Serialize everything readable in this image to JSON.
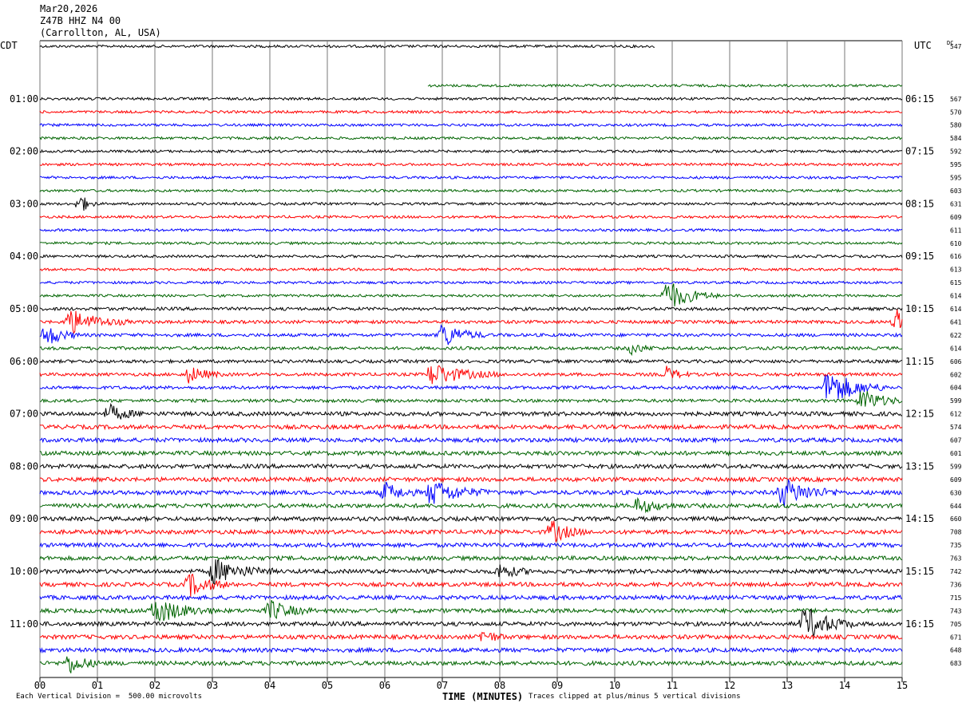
{
  "header": {
    "date": "Mar20,2026",
    "station": "Z47B HHZ N4 00",
    "location": "(Carrollton, AL, USA)"
  },
  "left_tz": "CDT",
  "right_tz": "UTC",
  "dc_label": "DC",
  "footer": {
    "scale_note": "Each Vertical Division =  500.00 microvolts",
    "clip_note": "Traces clipped at plus/minus 5 vertical divisions",
    "xlabel": "TIME (MINUTES)"
  },
  "chart_data": {
    "type": "line",
    "title": "",
    "xlabel": "TIME (MINUTES)",
    "xlim": [
      0,
      15
    ],
    "x_ticks": [
      "00",
      "01",
      "02",
      "03",
      "04",
      "05",
      "06",
      "07",
      "08",
      "09",
      "10",
      "11",
      "12",
      "13",
      "14",
      "15"
    ],
    "left_time_labels": [
      {
        "row": 4,
        "label": "01:00"
      },
      {
        "row": 8,
        "label": "02:00"
      },
      {
        "row": 12,
        "label": "03:00"
      },
      {
        "row": 16,
        "label": "04:00"
      },
      {
        "row": 20,
        "label": "05:00"
      },
      {
        "row": 24,
        "label": "06:00"
      },
      {
        "row": 28,
        "label": "07:00"
      },
      {
        "row": 32,
        "label": "08:00"
      },
      {
        "row": 36,
        "label": "09:00"
      },
      {
        "row": 40,
        "label": "10:00"
      },
      {
        "row": 44,
        "label": "11:00"
      }
    ],
    "right_time_labels": [
      {
        "row": 4,
        "label": "06:15"
      },
      {
        "row": 8,
        "label": "07:15"
      },
      {
        "row": 12,
        "label": "08:15"
      },
      {
        "row": 16,
        "label": "09:15"
      },
      {
        "row": 20,
        "label": "10:15"
      },
      {
        "row": 24,
        "label": "11:15"
      },
      {
        "row": 28,
        "label": "12:15"
      },
      {
        "row": 32,
        "label": "13:15"
      },
      {
        "row": 36,
        "label": "14:15"
      },
      {
        "row": 40,
        "label": "15:15"
      },
      {
        "row": 44,
        "label": "16:15"
      }
    ],
    "color_cycle": [
      "#000000",
      "#ff0000",
      "#0000ff",
      "#006400"
    ],
    "traces": [
      {
        "row": 0,
        "dc": "547",
        "start": 0,
        "end": 10.7
      },
      {
        "row": 1,
        "dc": "",
        "start": 0,
        "end": 0
      },
      {
        "row": 2,
        "dc": "",
        "start": 0,
        "end": 0
      },
      {
        "row": 3,
        "dc": "",
        "start": 6.75,
        "end": 15
      },
      {
        "row": 4,
        "dc": "567"
      },
      {
        "row": 5,
        "dc": "570"
      },
      {
        "row": 6,
        "dc": "580"
      },
      {
        "row": 7,
        "dc": "584"
      },
      {
        "row": 8,
        "dc": "592"
      },
      {
        "row": 9,
        "dc": "595"
      },
      {
        "row": 10,
        "dc": "595"
      },
      {
        "row": 11,
        "dc": "603"
      },
      {
        "row": 12,
        "dc": "631"
      },
      {
        "row": 13,
        "dc": "609"
      },
      {
        "row": 14,
        "dc": "611"
      },
      {
        "row": 15,
        "dc": "610"
      },
      {
        "row": 16,
        "dc": "616"
      },
      {
        "row": 17,
        "dc": "613"
      },
      {
        "row": 18,
        "dc": "615"
      },
      {
        "row": 19,
        "dc": "614"
      },
      {
        "row": 20,
        "dc": "614"
      },
      {
        "row": 21,
        "dc": "641"
      },
      {
        "row": 22,
        "dc": "622"
      },
      {
        "row": 23,
        "dc": "614"
      },
      {
        "row": 24,
        "dc": "606"
      },
      {
        "row": 25,
        "dc": "602"
      },
      {
        "row": 26,
        "dc": "604"
      },
      {
        "row": 27,
        "dc": "599"
      },
      {
        "row": 28,
        "dc": "612"
      },
      {
        "row": 29,
        "dc": "574"
      },
      {
        "row": 30,
        "dc": "607"
      },
      {
        "row": 31,
        "dc": "601"
      },
      {
        "row": 32,
        "dc": "599"
      },
      {
        "row": 33,
        "dc": "609"
      },
      {
        "row": 34,
        "dc": "630"
      },
      {
        "row": 35,
        "dc": "644"
      },
      {
        "row": 36,
        "dc": "660"
      },
      {
        "row": 37,
        "dc": "708"
      },
      {
        "row": 38,
        "dc": "735"
      },
      {
        "row": 39,
        "dc": "763"
      },
      {
        "row": 40,
        "dc": "742"
      },
      {
        "row": 41,
        "dc": "736"
      },
      {
        "row": 42,
        "dc": "715"
      },
      {
        "row": 43,
        "dc": "743"
      },
      {
        "row": 44,
        "dc": "705"
      },
      {
        "row": 45,
        "dc": "671"
      },
      {
        "row": 46,
        "dc": "648"
      },
      {
        "row": 47,
        "dc": "683"
      }
    ],
    "events": [
      {
        "row": 12,
        "t": 0.7,
        "amp": 1.4,
        "w": 0.2
      },
      {
        "row": 19,
        "t": 10.9,
        "amp": 2.2,
        "w": 0.6
      },
      {
        "row": 21,
        "t": 0.5,
        "amp": 1.8,
        "w": 0.7
      },
      {
        "row": 22,
        "t": 0.1,
        "amp": 1.6,
        "w": 0.4
      },
      {
        "row": 21,
        "t": 14.9,
        "amp": 1.8,
        "w": 0.3
      },
      {
        "row": 22,
        "t": 7.0,
        "amp": 1.8,
        "w": 0.5
      },
      {
        "row": 23,
        "t": 10.3,
        "amp": 0.8,
        "w": 0.3
      },
      {
        "row": 25,
        "t": 2.6,
        "amp": 1.2,
        "w": 0.4
      },
      {
        "row": 25,
        "t": 6.8,
        "amp": 1.6,
        "w": 0.8
      },
      {
        "row": 25,
        "t": 10.9,
        "amp": 1.0,
        "w": 0.3
      },
      {
        "row": 26,
        "t": 13.7,
        "amp": 2.6,
        "w": 0.7
      },
      {
        "row": 27,
        "t": 14.3,
        "amp": 1.6,
        "w": 0.5
      },
      {
        "row": 28,
        "t": 1.2,
        "amp": 1.2,
        "w": 0.4
      },
      {
        "row": 34,
        "t": 6.0,
        "amp": 1.4,
        "w": 0.4
      },
      {
        "row": 34,
        "t": 6.8,
        "amp": 1.8,
        "w": 0.7
      },
      {
        "row": 34,
        "t": 12.9,
        "amp": 2.0,
        "w": 0.7
      },
      {
        "row": 35,
        "t": 10.4,
        "amp": 1.0,
        "w": 0.5
      },
      {
        "row": 37,
        "t": 8.9,
        "amp": 1.6,
        "w": 0.4
      },
      {
        "row": 40,
        "t": 3.0,
        "amp": 1.8,
        "w": 0.7
      },
      {
        "row": 40,
        "t": 8.0,
        "amp": 1.0,
        "w": 0.4
      },
      {
        "row": 41,
        "t": 2.6,
        "amp": 1.6,
        "w": 0.5
      },
      {
        "row": 43,
        "t": 2.0,
        "amp": 1.8,
        "w": 0.7
      },
      {
        "row": 43,
        "t": 4.0,
        "amp": 1.4,
        "w": 0.5
      },
      {
        "row": 44,
        "t": 13.3,
        "amp": 2.4,
        "w": 0.6
      },
      {
        "row": 45,
        "t": 7.7,
        "amp": 0.9,
        "w": 0.3
      },
      {
        "row": 47,
        "t": 0.5,
        "amp": 1.4,
        "w": 0.4
      }
    ]
  }
}
